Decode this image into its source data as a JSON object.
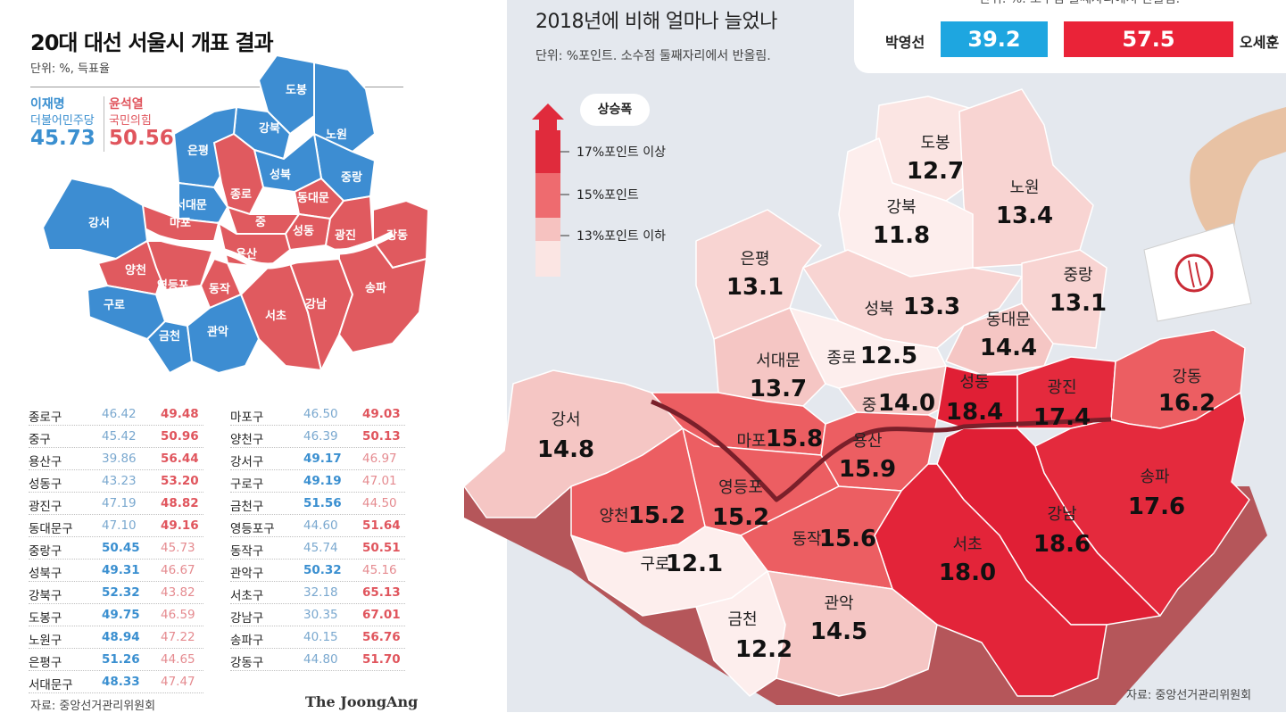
{
  "left": {
    "title": "20대 대선 서울시 개표 결과",
    "unit": "단위: %, 득표율",
    "candidate_a": {
      "name": "이재명",
      "party": "더불어민주당",
      "pct": "45.73",
      "color": "#3a8fd0"
    },
    "candidate_b": {
      "name": "윤석열",
      "party": "국민의힘",
      "pct": "50.56",
      "color": "#e0555d"
    },
    "map_labels": [
      "도봉",
      "강북",
      "노원",
      "은평",
      "성북",
      "중랑",
      "종로",
      "동대문",
      "서대문",
      "마포",
      "중",
      "강서",
      "성동",
      "광진",
      "강동",
      "용산",
      "양천",
      "영등포",
      "동작",
      "구로",
      "서초",
      "강남",
      "송파",
      "금천",
      "관악"
    ],
    "districts_col1": [
      {
        "name": "종로구",
        "a": "46.42",
        "b": "49.48",
        "winner": "b"
      },
      {
        "name": "중구",
        "a": "45.42",
        "b": "50.96",
        "winner": "b"
      },
      {
        "name": "용산구",
        "a": "39.86",
        "b": "56.44",
        "winner": "b"
      },
      {
        "name": "성동구",
        "a": "43.23",
        "b": "53.20",
        "winner": "b"
      },
      {
        "name": "광진구",
        "a": "47.19",
        "b": "48.82",
        "winner": "b"
      },
      {
        "name": "동대문구",
        "a": "47.10",
        "b": "49.16",
        "winner": "b"
      },
      {
        "name": "중랑구",
        "a": "50.45",
        "b": "45.73",
        "winner": "a"
      },
      {
        "name": "성북구",
        "a": "49.31",
        "b": "46.67",
        "winner": "a"
      },
      {
        "name": "강북구",
        "a": "52.32",
        "b": "43.82",
        "winner": "a"
      },
      {
        "name": "도봉구",
        "a": "49.75",
        "b": "46.59",
        "winner": "a"
      },
      {
        "name": "노원구",
        "a": "48.94",
        "b": "47.22",
        "winner": "a"
      },
      {
        "name": "은평구",
        "a": "51.26",
        "b": "44.65",
        "winner": "a"
      },
      {
        "name": "서대문구",
        "a": "48.33",
        "b": "47.47",
        "winner": "a"
      }
    ],
    "districts_col2": [
      {
        "name": "마포구",
        "a": "46.50",
        "b": "49.03",
        "winner": "b"
      },
      {
        "name": "양천구",
        "a": "46.39",
        "b": "50.13",
        "winner": "b"
      },
      {
        "name": "강서구",
        "a": "49.17",
        "b": "46.97",
        "winner": "a"
      },
      {
        "name": "구로구",
        "a": "49.19",
        "b": "47.01",
        "winner": "a"
      },
      {
        "name": "금천구",
        "a": "51.56",
        "b": "44.50",
        "winner": "a"
      },
      {
        "name": "영등포구",
        "a": "44.60",
        "b": "51.64",
        "winner": "b"
      },
      {
        "name": "동작구",
        "a": "45.74",
        "b": "50.51",
        "winner": "b"
      },
      {
        "name": "관악구",
        "a": "50.32",
        "b": "45.16",
        "winner": "a"
      },
      {
        "name": "서초구",
        "a": "32.18",
        "b": "65.13",
        "winner": "b"
      },
      {
        "name": "강남구",
        "a": "30.35",
        "b": "67.01",
        "winner": "b"
      },
      {
        "name": "송파구",
        "a": "40.15",
        "b": "56.76",
        "winner": "b"
      },
      {
        "name": "강동구",
        "a": "44.80",
        "b": "51.70",
        "winner": "b"
      }
    ],
    "source": "자료: 중앙선거관리위원회",
    "logo": "The JoongAng"
  },
  "right": {
    "title": "2018년에 비해 얼마나 늘었나",
    "unit": "단위: %포인트. 소수점 둘째자리에서 반올림.",
    "header_cut": "단위: %. 소수점 둘째자리에서 반올림.",
    "comparison": {
      "a_name": "박영선",
      "a_value": "39.2",
      "a_color": "#1ea6e0",
      "b_name": "오세훈",
      "b_value": "57.5",
      "b_color": "#ea2338"
    },
    "legend": {
      "badge": "상승폭",
      "levels": [
        "17%포인트 이상",
        "15%포인트",
        "13%포인트 이하"
      ],
      "colors": [
        "#e02b3c",
        "#ee6b6f",
        "#f6c2c0",
        "#fbe5e3"
      ]
    },
    "districts": [
      {
        "name": "도봉",
        "value": "12.7"
      },
      {
        "name": "노원",
        "value": "13.4"
      },
      {
        "name": "강북",
        "value": "11.8"
      },
      {
        "name": "은평",
        "value": "13.1"
      },
      {
        "name": "중랑",
        "value": "13.1"
      },
      {
        "name": "성북",
        "value": "13.3"
      },
      {
        "name": "동대문",
        "value": "14.4"
      },
      {
        "name": "서대문",
        "value": "13.7"
      },
      {
        "name": "종로",
        "value": "12.5"
      },
      {
        "name": "중",
        "value": "14.0"
      },
      {
        "name": "성동",
        "value": "18.4"
      },
      {
        "name": "광진",
        "value": "17.4"
      },
      {
        "name": "강동",
        "value": "16.2"
      },
      {
        "name": "강서",
        "value": "14.8"
      },
      {
        "name": "마포",
        "value": "15.8"
      },
      {
        "name": "용산",
        "value": "15.9"
      },
      {
        "name": "영등포",
        "value": "15.2"
      },
      {
        "name": "양천",
        "value": "15.2"
      },
      {
        "name": "송파",
        "value": "17.6"
      },
      {
        "name": "강남",
        "value": "18.6"
      },
      {
        "name": "서초",
        "value": "18.0"
      },
      {
        "name": "동작",
        "value": "15.6"
      },
      {
        "name": "구로",
        "value": "12.1"
      },
      {
        "name": "금천",
        "value": "12.2"
      },
      {
        "name": "관악",
        "value": "14.5"
      }
    ],
    "source": "자료: 중앙선거관리위원회"
  }
}
